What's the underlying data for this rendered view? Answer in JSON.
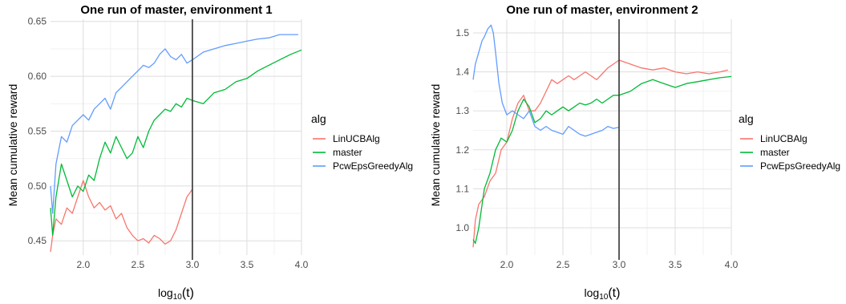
{
  "chart_data": [
    {
      "type": "line",
      "title": "One run of master, environment 1",
      "xlabel_base": "log",
      "xlabel_sub": "10",
      "xlabel_arg": "(t)",
      "ylabel": "Mean cumulative reward",
      "xlim": [
        1.7,
        4.0
      ],
      "ylim": [
        0.437,
        0.652
      ],
      "xticks": [
        2.0,
        2.5,
        3.0,
        3.5,
        4.0
      ],
      "xtick_labels": [
        "2.0",
        "2.5",
        "3.0",
        "3.5",
        "4.0"
      ],
      "yticks": [
        0.45,
        0.5,
        0.55,
        0.6,
        0.65
      ],
      "ytick_labels": [
        "0.45",
        "0.50",
        "0.55",
        "0.60",
        "0.65"
      ],
      "vline_x": 3.0,
      "grid": true,
      "legend_title": "alg",
      "legend_position": "right",
      "series": [
        {
          "name": "LinUCBAlg",
          "color": "#F8766D",
          "x": [
            1.7,
            1.72,
            1.75,
            1.8,
            1.85,
            1.9,
            1.95,
            2.0,
            2.05,
            2.1,
            2.15,
            2.2,
            2.25,
            2.3,
            2.35,
            2.4,
            2.45,
            2.5,
            2.55,
            2.6,
            2.65,
            2.7,
            2.75,
            2.8,
            2.85,
            2.9,
            2.95,
            3.0
          ],
          "y": [
            0.44,
            0.455,
            0.47,
            0.465,
            0.48,
            0.475,
            0.49,
            0.505,
            0.49,
            0.48,
            0.485,
            0.478,
            0.482,
            0.47,
            0.475,
            0.462,
            0.455,
            0.45,
            0.452,
            0.448,
            0.455,
            0.452,
            0.447,
            0.45,
            0.46,
            0.475,
            0.49,
            0.497
          ]
        },
        {
          "name": "master",
          "color": "#00BA38",
          "x": [
            1.7,
            1.72,
            1.75,
            1.8,
            1.85,
            1.9,
            1.95,
            2.0,
            2.05,
            2.1,
            2.15,
            2.2,
            2.25,
            2.3,
            2.35,
            2.4,
            2.45,
            2.5,
            2.55,
            2.6,
            2.65,
            2.7,
            2.75,
            2.8,
            2.85,
            2.9,
            2.95,
            3.0,
            3.1,
            3.2,
            3.3,
            3.4,
            3.5,
            3.6,
            3.7,
            3.8,
            3.9,
            4.0
          ],
          "y": [
            0.48,
            0.455,
            0.49,
            0.52,
            0.505,
            0.49,
            0.5,
            0.495,
            0.51,
            0.505,
            0.525,
            0.54,
            0.53,
            0.545,
            0.535,
            0.525,
            0.53,
            0.545,
            0.535,
            0.55,
            0.56,
            0.565,
            0.57,
            0.568,
            0.575,
            0.572,
            0.58,
            0.578,
            0.575,
            0.585,
            0.588,
            0.595,
            0.598,
            0.605,
            0.61,
            0.615,
            0.62,
            0.624
          ]
        },
        {
          "name": "PcwEpsGreedyAlg",
          "color": "#619CFF",
          "x": [
            1.7,
            1.72,
            1.75,
            1.8,
            1.85,
            1.9,
            1.95,
            2.0,
            2.05,
            2.1,
            2.15,
            2.2,
            2.25,
            2.3,
            2.35,
            2.4,
            2.45,
            2.5,
            2.55,
            2.6,
            2.65,
            2.7,
            2.75,
            2.8,
            2.85,
            2.9,
            2.95,
            3.0,
            3.1,
            3.2,
            3.3,
            3.4,
            3.5,
            3.6,
            3.7,
            3.8,
            3.9,
            3.97
          ],
          "y": [
            0.5,
            0.475,
            0.52,
            0.545,
            0.54,
            0.555,
            0.56,
            0.565,
            0.56,
            0.57,
            0.575,
            0.58,
            0.57,
            0.585,
            0.59,
            0.595,
            0.6,
            0.605,
            0.61,
            0.608,
            0.612,
            0.62,
            0.625,
            0.618,
            0.615,
            0.62,
            0.612,
            0.615,
            0.622,
            0.625,
            0.628,
            0.63,
            0.632,
            0.634,
            0.635,
            0.638,
            0.638,
            0.638
          ]
        }
      ]
    },
    {
      "type": "line",
      "title": "One run of master, environment 2",
      "xlabel_base": "log",
      "xlabel_sub": "10",
      "xlabel_arg": "(t)",
      "ylabel": "Mean cumulative reward",
      "xlim": [
        1.7,
        4.0
      ],
      "ylim": [
        0.93,
        1.535
      ],
      "xticks": [
        2.0,
        2.5,
        3.0,
        3.5,
        4.0
      ],
      "xtick_labels": [
        "2.0",
        "2.5",
        "3.0",
        "3.5",
        "4.0"
      ],
      "yticks": [
        1.0,
        1.1,
        1.2,
        1.3,
        1.4,
        1.5
      ],
      "ytick_labels": [
        "1.0",
        "1.1",
        "1.2",
        "1.3",
        "1.4",
        "1.5"
      ],
      "vline_x": 3.0,
      "grid": true,
      "legend_title": "alg",
      "legend_position": "right",
      "series": [
        {
          "name": "LinUCBAlg",
          "color": "#F8766D",
          "x": [
            1.7,
            1.72,
            1.75,
            1.8,
            1.85,
            1.9,
            1.95,
            2.0,
            2.05,
            2.1,
            2.15,
            2.2,
            2.25,
            2.3,
            2.35,
            2.4,
            2.45,
            2.5,
            2.55,
            2.6,
            2.65,
            2.7,
            2.75,
            2.8,
            2.85,
            2.9,
            2.95,
            3.0,
            3.1,
            3.2,
            3.3,
            3.4,
            3.5,
            3.6,
            3.7,
            3.8,
            3.9,
            3.97
          ],
          "y": [
            0.95,
            1.02,
            1.06,
            1.08,
            1.12,
            1.14,
            1.2,
            1.22,
            1.28,
            1.32,
            1.34,
            1.3,
            1.3,
            1.32,
            1.35,
            1.38,
            1.37,
            1.38,
            1.39,
            1.38,
            1.39,
            1.4,
            1.39,
            1.38,
            1.395,
            1.41,
            1.42,
            1.43,
            1.42,
            1.41,
            1.405,
            1.41,
            1.4,
            1.395,
            1.4,
            1.395,
            1.4,
            1.405
          ]
        },
        {
          "name": "master",
          "color": "#00BA38",
          "x": [
            1.7,
            1.72,
            1.75,
            1.8,
            1.85,
            1.9,
            1.95,
            2.0,
            2.05,
            2.1,
            2.15,
            2.2,
            2.25,
            2.3,
            2.35,
            2.4,
            2.45,
            2.5,
            2.55,
            2.6,
            2.65,
            2.7,
            2.75,
            2.8,
            2.85,
            2.9,
            2.95,
            3.0,
            3.1,
            3.2,
            3.3,
            3.4,
            3.5,
            3.6,
            3.7,
            3.8,
            3.9,
            4.0
          ],
          "y": [
            0.97,
            0.96,
            1.0,
            1.1,
            1.14,
            1.2,
            1.23,
            1.22,
            1.25,
            1.3,
            1.33,
            1.31,
            1.27,
            1.28,
            1.3,
            1.29,
            1.3,
            1.31,
            1.3,
            1.31,
            1.32,
            1.315,
            1.32,
            1.33,
            1.32,
            1.33,
            1.34,
            1.34,
            1.35,
            1.37,
            1.38,
            1.37,
            1.36,
            1.37,
            1.375,
            1.38,
            1.385,
            1.388
          ]
        },
        {
          "name": "PcwEpsGreedyAlg",
          "color": "#619CFF",
          "x": [
            1.7,
            1.72,
            1.75,
            1.78,
            1.8,
            1.83,
            1.86,
            1.88,
            1.9,
            1.93,
            1.96,
            2.0,
            2.05,
            2.1,
            2.15,
            2.2,
            2.25,
            2.3,
            2.35,
            2.4,
            2.45,
            2.5,
            2.55,
            2.6,
            2.65,
            2.7,
            2.75,
            2.8,
            2.85,
            2.9,
            2.95,
            3.0
          ],
          "y": [
            1.38,
            1.42,
            1.45,
            1.48,
            1.49,
            1.51,
            1.52,
            1.5,
            1.45,
            1.37,
            1.32,
            1.29,
            1.3,
            1.29,
            1.28,
            1.3,
            1.26,
            1.25,
            1.26,
            1.25,
            1.245,
            1.24,
            1.26,
            1.25,
            1.24,
            1.235,
            1.24,
            1.245,
            1.25,
            1.26,
            1.255,
            1.258
          ]
        }
      ]
    }
  ]
}
